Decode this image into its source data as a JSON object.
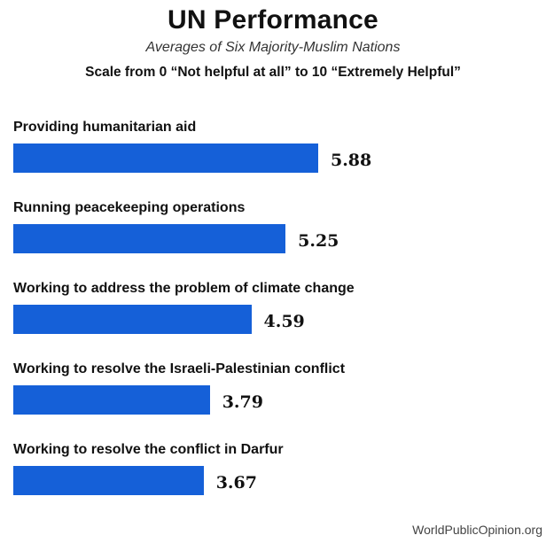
{
  "chart_data": {
    "type": "bar",
    "orientation": "horizontal",
    "title": "UN Performance",
    "subtitle": "Averages of Six Majority-Muslim Nations",
    "scale_note": "Scale from 0 “Not helpful at all” to 10 “Extremely Helpful”",
    "categories": [
      "Providing humanitarian aid",
      "Running peacekeeping operations",
      "Working to address the problem of climate change",
      "Working to resolve the Israeli-Palestinian conflict",
      "Working to resolve the conflict in Darfur"
    ],
    "values": [
      5.88,
      5.25,
      4.59,
      3.79,
      3.67
    ],
    "value_labels": [
      "5.88",
      "5.25",
      "4.59",
      "3.79",
      "3.67"
    ],
    "bar_color": "#1560d8",
    "grid": false,
    "legend": "none",
    "xlim": [
      0,
      10
    ],
    "source": "WorldPublicOpinion.org"
  }
}
